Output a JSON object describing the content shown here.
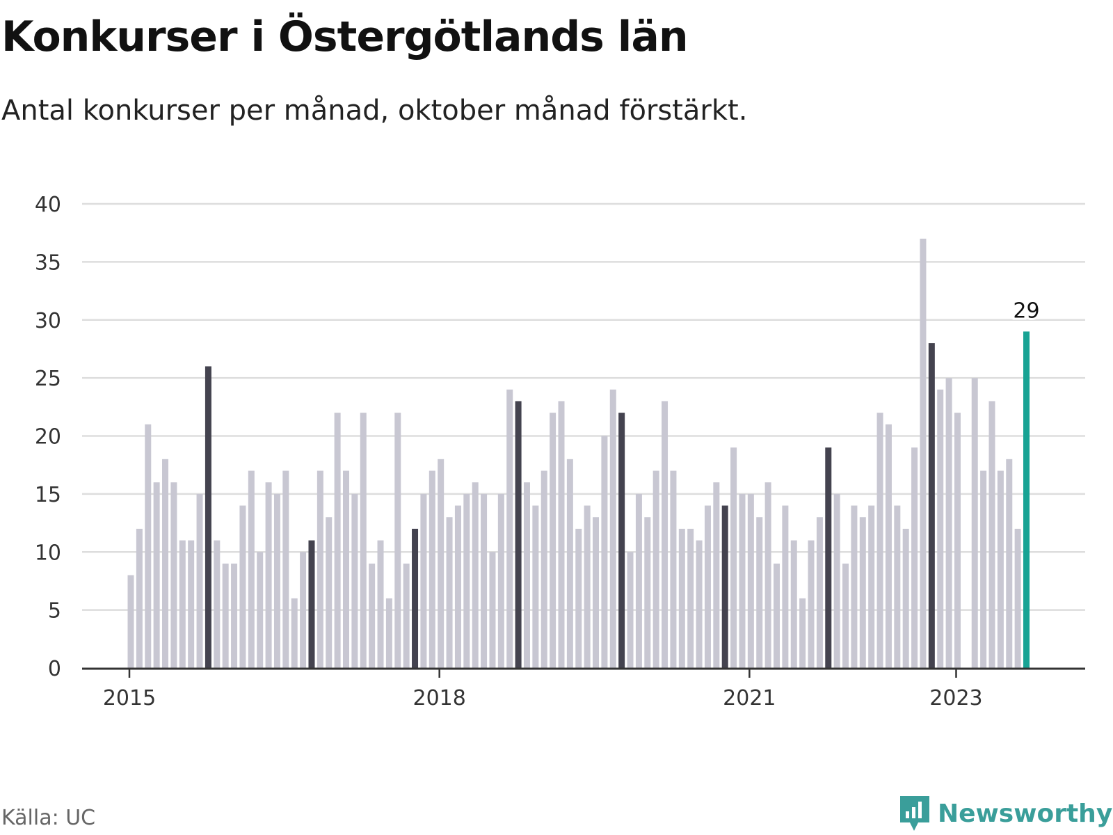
{
  "title": "Konkurser i Östergötlands län",
  "subtitle": "Antal konkurser per månad, oktober månad förstärkt.",
  "source": "Källa: UC",
  "brand": "Newsworthy",
  "colors": {
    "bar": "#c8c7d2",
    "highlight": "#44434f",
    "latest": "#18a394",
    "grid": "#dddddd",
    "axis": "#333333",
    "brand": "#3a9e9a"
  },
  "chart_data": {
    "type": "bar",
    "title": "Konkurser i Östergötlands län",
    "subtitle": "Antal konkurser per månad, oktober månad förstärkt.",
    "xlabel": "",
    "ylabel": "",
    "ylim": [
      0,
      40
    ],
    "yticks": [
      "0",
      "5",
      "10",
      "15",
      "20",
      "25",
      "30",
      "35",
      "40"
    ],
    "xticks": [
      "2015",
      "2018",
      "2021",
      "2023"
    ],
    "grid": true,
    "start": "2015-01",
    "highlight_month": "oktober",
    "values": [
      8,
      12,
      21,
      16,
      18,
      16,
      11,
      11,
      15,
      26,
      11,
      9,
      9,
      14,
      17,
      10,
      16,
      15,
      17,
      6,
      10,
      11,
      17,
      13,
      22,
      17,
      15,
      22,
      9,
      11,
      6,
      22,
      9,
      12,
      15,
      17,
      18,
      13,
      14,
      15,
      16,
      15,
      10,
      15,
      24,
      23,
      16,
      14,
      17,
      22,
      23,
      18,
      12,
      14,
      13,
      20,
      24,
      22,
      10,
      15,
      13,
      17,
      23,
      17,
      12,
      12,
      11,
      14,
      16,
      14,
      19,
      15,
      15,
      13,
      16,
      9,
      14,
      11,
      6,
      11,
      13,
      19,
      15,
      9,
      14,
      13,
      14,
      22,
      21,
      14,
      12,
      19,
      37,
      28,
      24,
      25,
      22,
      0,
      25,
      17,
      23,
      17,
      18,
      12,
      29
    ],
    "data_labels": [
      {
        "index": 104,
        "text": "29"
      }
    ]
  }
}
